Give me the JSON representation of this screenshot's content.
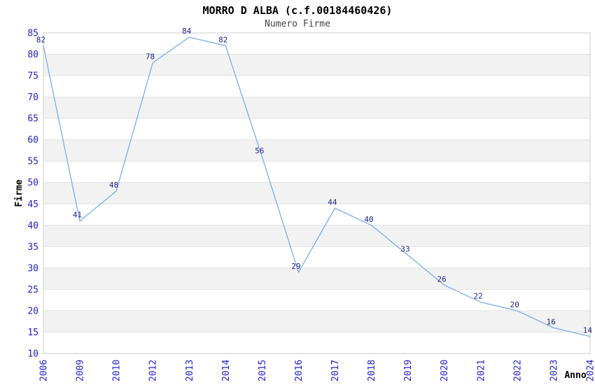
{
  "header": {
    "title": "MORRO D ALBA (c.f.00184460426)",
    "subtitle": "Numero Firme"
  },
  "chart_data": {
    "type": "line",
    "title": "MORRO D ALBA (c.f.00184460426)",
    "subtitle": "Numero Firme",
    "categories": [
      "2006",
      "2009",
      "2010",
      "2012",
      "2013",
      "2014",
      "2015",
      "2016",
      "2017",
      "2018",
      "2019",
      "2020",
      "2021",
      "2022",
      "2023",
      "2024"
    ],
    "values": [
      82,
      41,
      48,
      78,
      84,
      82,
      56,
      29,
      44,
      40,
      33,
      26,
      22,
      20,
      16,
      14
    ],
    "xlabel": "Anno",
    "ylabel": "Firme",
    "ylim": [
      10,
      85
    ],
    "ytick_step": 5,
    "grid": "horizontal-stripes",
    "legend": "none",
    "point_labels_shown": true,
    "colors": {
      "line": "#7aaee8",
      "tick_label": "#2222cc",
      "point_label": "#22228c",
      "stripe": "#f2f2f2",
      "gridline": "#e2e2e2",
      "border": "#cccccc",
      "title": "#000000",
      "subtitle": "#444444",
      "axis_label": "#000000",
      "background": "#ffffff"
    }
  }
}
